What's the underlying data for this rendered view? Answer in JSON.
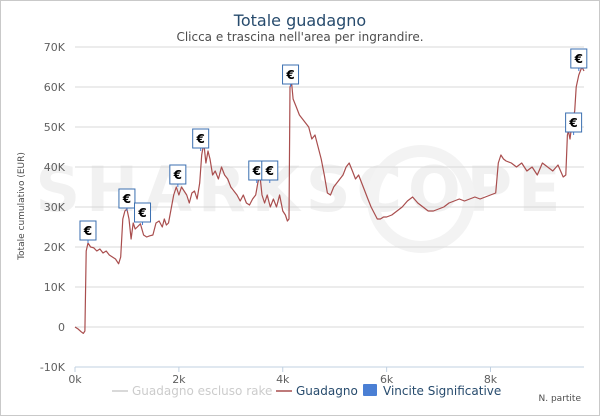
{
  "chart_data": {
    "type": "line",
    "title": "Totale guadagno",
    "subtitle": "Clicca e trascina nell'area per ingrandire.",
    "xlabel": "N. partite",
    "ylabel": "Totale cumulativo (EUR)",
    "xlim": [
      0,
      9800
    ],
    "ylim": [
      -10000,
      70000
    ],
    "x_ticks": [
      {
        "value": 0,
        "label": "0k"
      },
      {
        "value": 2000,
        "label": "2k"
      },
      {
        "value": 4000,
        "label": "4k"
      },
      {
        "value": 6000,
        "label": "6k"
      },
      {
        "value": 8000,
        "label": "8k"
      }
    ],
    "y_ticks": [
      {
        "value": -10000,
        "label": "-10K"
      },
      {
        "value": 0,
        "label": "0"
      },
      {
        "value": 10000,
        "label": "10K"
      },
      {
        "value": 20000,
        "label": "20K"
      },
      {
        "value": 30000,
        "label": "30K"
      },
      {
        "value": 40000,
        "label": "40K"
      },
      {
        "value": 50000,
        "label": "50K"
      },
      {
        "value": 60000,
        "label": "60K"
      },
      {
        "value": 70000,
        "label": "70K"
      }
    ],
    "grid": "horizontal",
    "legend_position": "bottom-center",
    "watermark": "SHARKSCOPE",
    "series": [
      {
        "name": "Guadagno escluso rake",
        "color": "#cccccc",
        "visible": false,
        "x": [],
        "y": []
      },
      {
        "name": "Guadagno",
        "color": "#a94e4e",
        "x": [
          0,
          60,
          120,
          160,
          190,
          215,
          250,
          300,
          360,
          420,
          480,
          540,
          600,
          660,
          720,
          780,
          840,
          880,
          920,
          960,
          1000,
          1040,
          1080,
          1120,
          1160,
          1200,
          1260,
          1320,
          1380,
          1440,
          1500,
          1560,
          1620,
          1680,
          1720,
          1760,
          1800,
          1850,
          1900,
          1950,
          2000,
          2050,
          2100,
          2150,
          2200,
          2250,
          2300,
          2350,
          2400,
          2440,
          2480,
          2520,
          2560,
          2600,
          2650,
          2700,
          2760,
          2820,
          2880,
          2940,
          3000,
          3060,
          3120,
          3180,
          3240,
          3300,
          3360,
          3420,
          3480,
          3520,
          3560,
          3600,
          3650,
          3700,
          3760,
          3820,
          3880,
          3940,
          4000,
          4050,
          4090,
          4120,
          4140,
          4170,
          4200,
          4260,
          4320,
          4380,
          4440,
          4500,
          4560,
          4620,
          4680,
          4740,
          4800,
          4860,
          4920,
          4980,
          5040,
          5100,
          5160,
          5220,
          5280,
          5340,
          5400,
          5460,
          5520,
          5580,
          5640,
          5700,
          5760,
          5820,
          5880,
          5940,
          6000,
          6100,
          6200,
          6300,
          6400,
          6500,
          6600,
          6700,
          6800,
          6900,
          7000,
          7100,
          7200,
          7300,
          7400,
          7500,
          7600,
          7700,
          7800,
          7900,
          8000,
          8100,
          8150,
          8200,
          8250,
          8300,
          8400,
          8500,
          8600,
          8700,
          8800,
          8900,
          9000,
          9100,
          9200,
          9300,
          9350,
          9400,
          9450,
          9480,
          9500,
          9530,
          9560,
          9590,
          9620,
          9650,
          9700,
          9760,
          9800
        ],
        "y": [
          0,
          -500,
          -1200,
          -1600,
          -1000,
          19000,
          21000,
          20000,
          19800,
          19000,
          19500,
          18500,
          19000,
          18000,
          17500,
          17000,
          15800,
          17500,
          27000,
          29000,
          29500,
          27000,
          22000,
          26000,
          24500,
          25000,
          25800,
          23000,
          22500,
          22800,
          23000,
          26000,
          26500,
          25000,
          27000,
          25500,
          26000,
          29500,
          33000,
          35000,
          33000,
          35000,
          34000,
          33000,
          31000,
          33500,
          34000,
          32000,
          36000,
          43000,
          46000,
          41000,
          44000,
          42000,
          38000,
          39000,
          37000,
          40000,
          38000,
          37000,
          35000,
          34000,
          33000,
          31500,
          33000,
          31000,
          30500,
          32000,
          33000,
          36000,
          38000,
          33000,
          31000,
          33000,
          30000,
          32000,
          30000,
          33000,
          29000,
          28000,
          26500,
          27000,
          60000,
          61000,
          57000,
          55000,
          53000,
          52000,
          51000,
          50000,
          47000,
          48000,
          45000,
          42000,
          38000,
          33500,
          33000,
          35000,
          36000,
          37000,
          38000,
          40000,
          41000,
          39000,
          37000,
          38000,
          36000,
          34000,
          32000,
          30000,
          28500,
          27000,
          27000,
          27500,
          27500,
          28000,
          29000,
          30000,
          31500,
          32500,
          31000,
          30000,
          29000,
          29000,
          29500,
          30000,
          31000,
          31500,
          32000,
          31500,
          32000,
          32500,
          32000,
          32500,
          33000,
          33500,
          41000,
          43000,
          42000,
          41500,
          41000,
          40000,
          41000,
          39000,
          40000,
          38000,
          41000,
          40000,
          39000,
          40500,
          39000,
          37500,
          38000,
          48000,
          49000,
          47000,
          50000,
          52000,
          54000,
          60000,
          63000,
          65000,
          64000
        ]
      },
      {
        "name": "Vincite Significative",
        "color": "#4a7fd4",
        "type": "flags",
        "symbol": "€",
        "x": [
          250,
          1000,
          1300,
          1980,
          2420,
          3500,
          3750,
          4150,
          9600,
          9700
        ],
        "y": [
          21000,
          29000,
          25500,
          35000,
          44000,
          36000,
          36000,
          60000,
          48000,
          64000
        ]
      }
    ]
  }
}
